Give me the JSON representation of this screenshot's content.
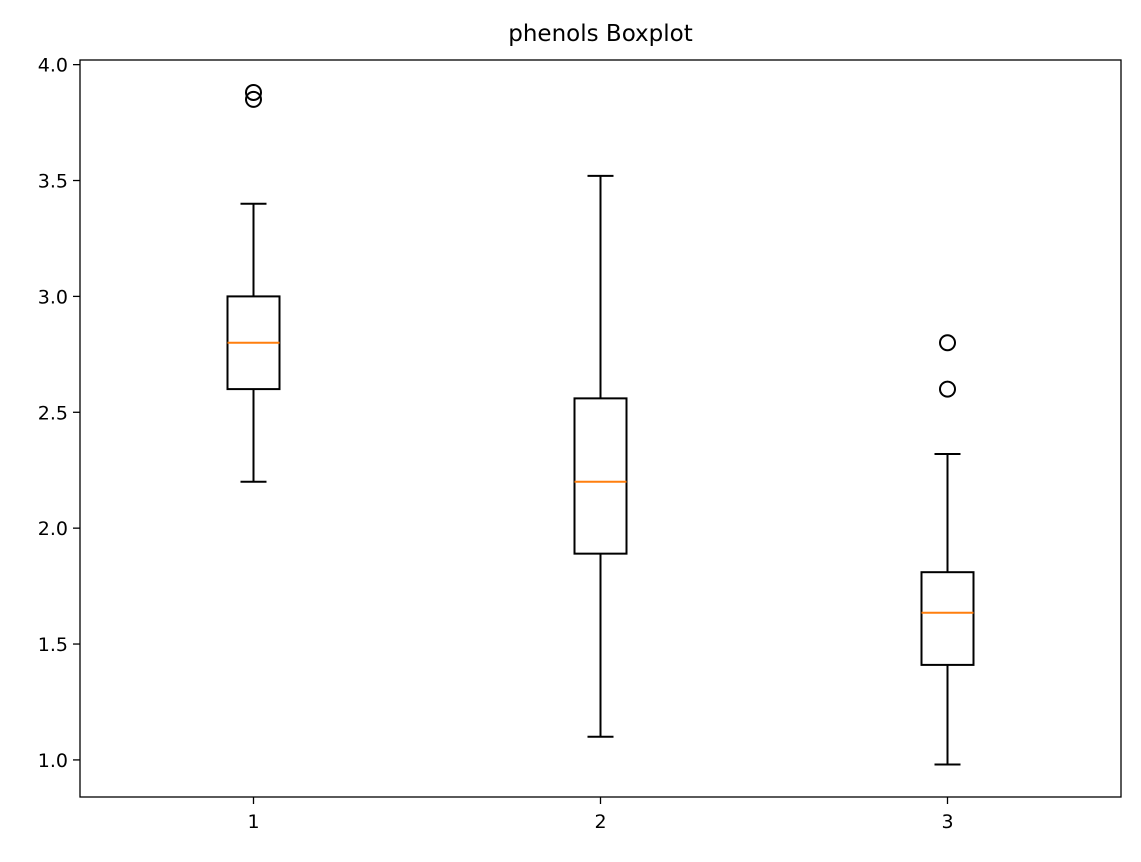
{
  "chart_data": {
    "type": "boxplot",
    "title": "phenols Boxplot",
    "xlabel": "",
    "ylabel": "",
    "categories": [
      "1",
      "2",
      "3"
    ],
    "ylim": [
      0.84,
      4.02
    ],
    "y_ticks": [
      1.0,
      1.5,
      2.0,
      2.5,
      3.0,
      3.5,
      4.0
    ],
    "y_tick_labels": [
      "1.0",
      "1.5",
      "2.0",
      "2.5",
      "3.0",
      "3.5",
      "4.0"
    ],
    "grid": false,
    "colors": {
      "box": "#000000",
      "median": "#ff7f0e",
      "outlier": "#000000"
    },
    "boxes": [
      {
        "name": "1",
        "whisker_low": 2.2,
        "q1": 2.6,
        "median": 2.8,
        "q3": 3.0,
        "whisker_high": 3.4,
        "outliers": [
          3.85,
          3.88
        ]
      },
      {
        "name": "2",
        "whisker_low": 1.1,
        "q1": 1.89,
        "median": 2.2,
        "q3": 2.56,
        "whisker_high": 3.52,
        "outliers": []
      },
      {
        "name": "3",
        "whisker_low": 0.98,
        "q1": 1.41,
        "median": 1.635,
        "q3": 1.81,
        "whisker_high": 2.32,
        "outliers": [
          2.6,
          2.8
        ]
      }
    ]
  }
}
